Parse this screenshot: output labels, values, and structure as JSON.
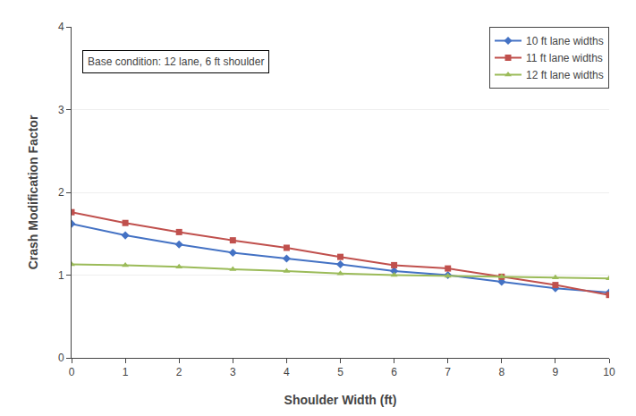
{
  "chart_data": {
    "type": "line",
    "x": [
      0,
      1,
      2,
      3,
      4,
      5,
      6,
      7,
      8,
      9,
      10
    ],
    "series": [
      {
        "name": "10 ft lane widths",
        "color": "#4472c4",
        "marker": "diamond",
        "values": [
          1.62,
          1.48,
          1.37,
          1.27,
          1.2,
          1.13,
          1.05,
          1.0,
          0.92,
          0.84,
          0.79
        ]
      },
      {
        "name": "11 ft lane widths",
        "color": "#c0504d",
        "marker": "square",
        "values": [
          1.76,
          1.63,
          1.52,
          1.42,
          1.33,
          1.22,
          1.12,
          1.08,
          0.98,
          0.88,
          0.76
        ]
      },
      {
        "name": "12 ft lane widths",
        "color": "#9bbb59",
        "marker": "triangle-up",
        "values": [
          1.13,
          1.12,
          1.1,
          1.07,
          1.05,
          1.02,
          1.0,
          0.99,
          0.98,
          0.97,
          0.96
        ]
      }
    ],
    "xlabel": "Shoulder Width (ft)",
    "ylabel": "Crash Modification Factor",
    "annotation": "Base condition: 12 lane, 6 ft shoulder",
    "xlim": [
      0,
      10
    ],
    "ylim": [
      0,
      4
    ],
    "xticks": [
      0,
      1,
      2,
      3,
      4,
      5,
      6,
      7,
      8,
      9,
      10
    ],
    "yticks": [
      0,
      1,
      2,
      3,
      4
    ],
    "grid": "y",
    "legend": "upper right"
  }
}
